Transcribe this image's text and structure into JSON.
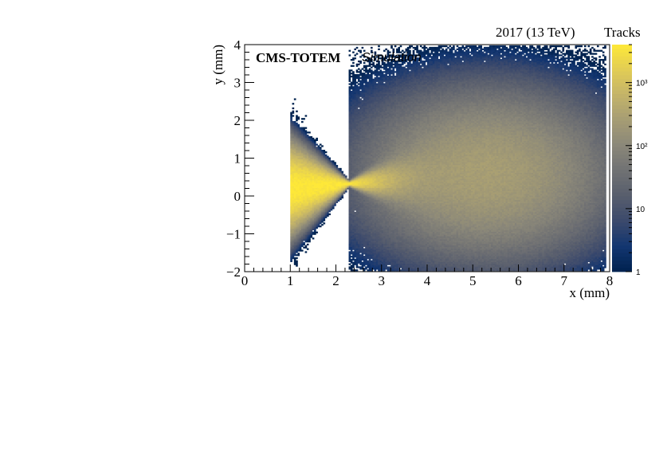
{
  "chart_data": {
    "type": "heatmap",
    "title": "",
    "collaboration": "CMS-TOTEM",
    "status": "Simulation",
    "energy_label": "2017 (13 TeV)",
    "xlabel": "x (mm)",
    "ylabel": "y (mm)",
    "zlabel": "Tracks",
    "xlim": [
      0,
      8
    ],
    "ylim": [
      -2,
      4
    ],
    "zlim": [
      1,
      4000
    ],
    "z_scale": "log",
    "x_ticks": [
      0,
      1,
      2,
      3,
      4,
      5,
      6,
      7,
      8
    ],
    "x_tick_labels": [
      "0",
      "1",
      "2",
      "3",
      "4",
      "5",
      "6",
      "7",
      "8"
    ],
    "y_ticks": [
      -2,
      -1,
      0,
      1,
      2,
      3,
      4
    ],
    "y_tick_labels": [
      "−2",
      "−1",
      "0",
      "1",
      "2",
      "3",
      "4"
    ],
    "z_ticks": [
      10,
      100,
      1000
    ],
    "z_tick_labels": [
      "10",
      "10²",
      "10³"
    ],
    "z_min_label": "1",
    "colormap": [
      "#00224e",
      "#123570",
      "#3b496c",
      "#575d6d",
      "#707173",
      "#8a8779",
      "#a59c74",
      "#c3b369",
      "#e1cc55",
      "#fee838"
    ],
    "distribution": {
      "description_points": [
        {
          "x": 1.0,
          "y_min": -1.4,
          "y_max": 1.6
        },
        {
          "x": 2.3,
          "y_min": 0.3,
          "y_max": 0.4
        },
        {
          "x": 5.3,
          "y_min": -1.9,
          "y_max": 3.2
        },
        {
          "x": 7.8,
          "y_min": -0.2,
          "y_max": 0.8
        }
      ],
      "peak_counts": 4000,
      "waist_x": 2.3,
      "waist_y": 0.33
    }
  }
}
